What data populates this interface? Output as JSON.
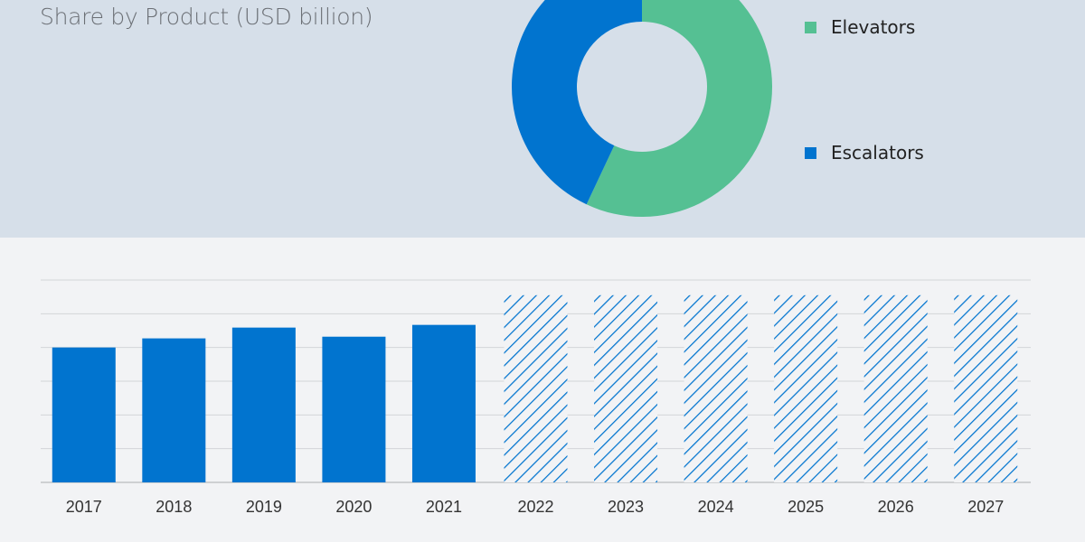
{
  "chart_data": [
    {
      "type": "pie",
      "variant": "donut",
      "title": "Share by Product (USD billion)",
      "slices": [
        {
          "name": "Elevators",
          "value": 57,
          "color": "#55c093"
        },
        {
          "name": "Escalators",
          "value": 43,
          "color": "#0174cf"
        }
      ],
      "legend_placement": "right"
    },
    {
      "type": "bar",
      "categories": [
        "2017",
        "2018",
        "2019",
        "2020",
        "2021",
        "2022",
        "2023",
        "2024",
        "2025",
        "2026",
        "2027"
      ],
      "values": [
        4.0,
        4.27,
        4.59,
        4.32,
        4.67,
        5.55,
        5.55,
        5.55,
        5.55,
        5.55,
        5.55
      ],
      "forecast_from": "2022",
      "forecast_style": "hatched",
      "ylim": [
        0,
        6
      ],
      "grid": true,
      "y_tick_labels_shown": false,
      "color": "#0174cf"
    }
  ]
}
